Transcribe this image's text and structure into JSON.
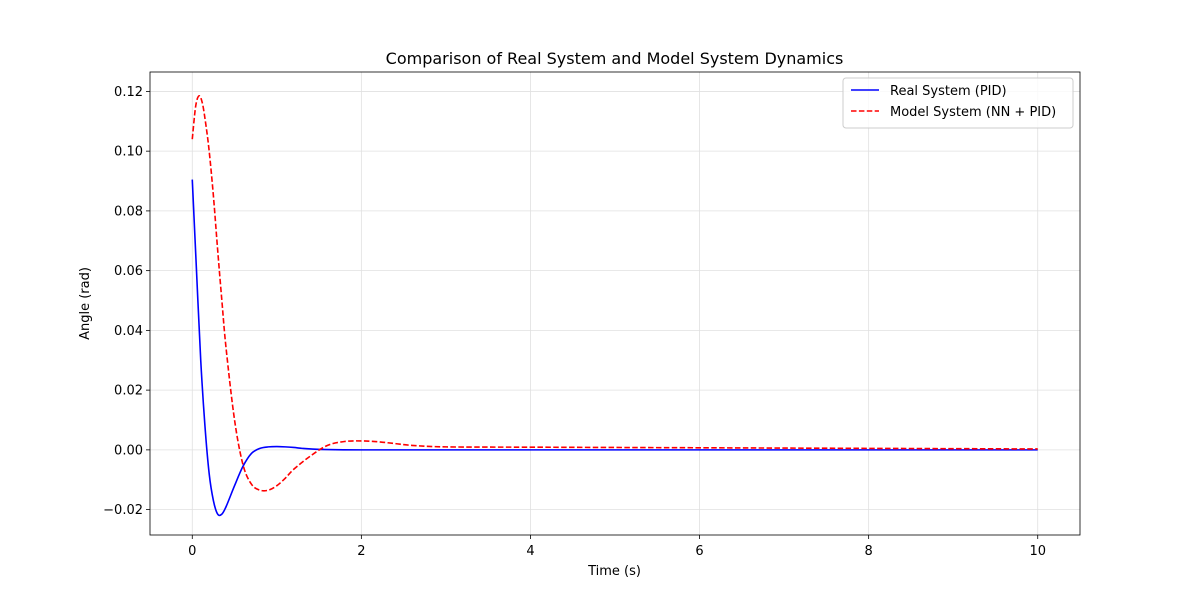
{
  "chart_data": {
    "type": "line",
    "title": "Comparison of Real System and Model System Dynamics",
    "xlabel": "Time (s)",
    "ylabel": "Angle (rad)",
    "xlim": [
      -0.5,
      10.5
    ],
    "ylim": [
      -0.0285,
      0.1265
    ],
    "xticks": [
      0,
      2,
      4,
      6,
      8,
      10
    ],
    "xtick_labels": [
      "0",
      "2",
      "4",
      "6",
      "8",
      "10"
    ],
    "yticks": [
      -0.02,
      0.0,
      0.02,
      0.04,
      0.06,
      0.08,
      0.1,
      0.12
    ],
    "ytick_labels": [
      "−0.02",
      "0.00",
      "0.02",
      "0.04",
      "0.06",
      "0.08",
      "0.10",
      "0.12"
    ],
    "grid": true,
    "legend_position": "top-right",
    "series": [
      {
        "name": "Real System (PID)",
        "color": "#0000ff",
        "dash": "solid",
        "x": [
          0,
          0.05,
          0.1,
          0.15,
          0.2,
          0.25,
          0.3,
          0.35,
          0.4,
          0.5,
          0.6,
          0.7,
          0.8,
          0.9,
          1.0,
          1.1,
          1.2,
          1.3,
          1.4,
          1.6,
          2.0,
          3.0,
          4.0,
          5.0,
          6.0,
          7.0,
          8.0,
          9.0,
          10.0
        ],
        "y": [
          0.0905,
          0.06,
          0.03,
          0.008,
          -0.008,
          -0.017,
          -0.0215,
          -0.0215,
          -0.019,
          -0.012,
          -0.0055,
          -0.0012,
          0.0005,
          0.001,
          0.0011,
          0.001,
          0.0008,
          0.0005,
          0.0003,
          0.0001,
          0.0,
          0.0,
          0.0,
          0.0,
          0.0,
          0.0,
          0.0,
          0.0,
          0.0
        ]
      },
      {
        "name": "Model System (NN + PID)",
        "color": "#ff0000",
        "dash": "dashed",
        "x": [
          0,
          0.04,
          0.08,
          0.12,
          0.16,
          0.2,
          0.25,
          0.3,
          0.35,
          0.4,
          0.5,
          0.6,
          0.7,
          0.8,
          0.9,
          1.0,
          1.1,
          1.2,
          1.4,
          1.6,
          1.8,
          2.0,
          2.2,
          2.4,
          2.6,
          3.0,
          4.0,
          5.0,
          6.0,
          7.0,
          8.0,
          9.0,
          10.0
        ],
        "y": [
          0.104,
          0.115,
          0.1185,
          0.116,
          0.109,
          0.1,
          0.085,
          0.067,
          0.05,
          0.034,
          0.01,
          -0.005,
          -0.0115,
          -0.0135,
          -0.0135,
          -0.012,
          -0.0095,
          -0.0065,
          -0.002,
          0.0015,
          0.0028,
          0.003,
          0.0027,
          0.0021,
          0.0015,
          0.001,
          0.0009,
          0.0008,
          0.0007,
          0.0006,
          0.0005,
          0.0004,
          0.0003
        ]
      }
    ]
  }
}
